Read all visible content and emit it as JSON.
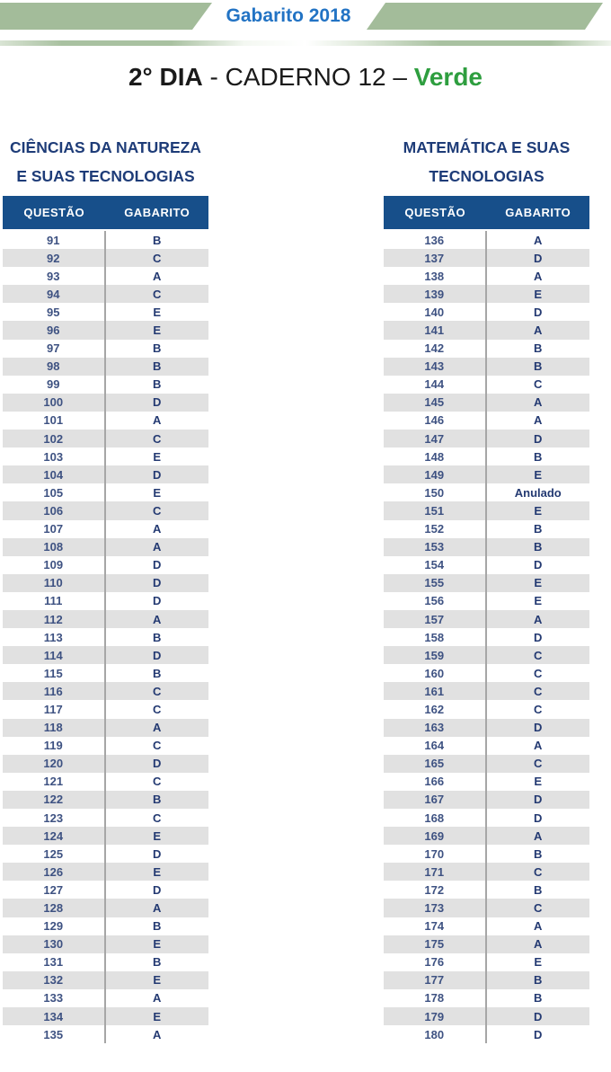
{
  "banner": {
    "title": "Gabarito 2018"
  },
  "page_title": {
    "day": "2° DIA",
    "caderno_part": " - CADERNO 12 – ",
    "color_name": "Verde"
  },
  "colors": {
    "band_green": "#a3bc9a",
    "banner_blue": "#2273c4",
    "verde_green": "#2e9e3f",
    "header_navy": "#174f8a",
    "title_navy": "#1e3c78",
    "question_number_navy": "#3e5282",
    "answer_letter_navy": "#243a72",
    "stripe_gray": "#e1e1e1"
  },
  "tables": [
    {
      "title_lines": [
        "CIÊNCIAS DA NATUREZA",
        "E SUAS TECNOLOGIAS"
      ],
      "columns": [
        "QUESTÃO",
        "GABARITO"
      ],
      "rows": [
        [
          "91",
          "B"
        ],
        [
          "92",
          "C"
        ],
        [
          "93",
          "A"
        ],
        [
          "94",
          "C"
        ],
        [
          "95",
          "E"
        ],
        [
          "96",
          "E"
        ],
        [
          "97",
          "B"
        ],
        [
          "98",
          "B"
        ],
        [
          "99",
          "B"
        ],
        [
          "100",
          "D"
        ],
        [
          "101",
          "A"
        ],
        [
          "102",
          "C"
        ],
        [
          "103",
          "E"
        ],
        [
          "104",
          "D"
        ],
        [
          "105",
          "E"
        ],
        [
          "106",
          "C"
        ],
        [
          "107",
          "A"
        ],
        [
          "108",
          "A"
        ],
        [
          "109",
          "D"
        ],
        [
          "110",
          "D"
        ],
        [
          "111",
          "D"
        ],
        [
          "112",
          "A"
        ],
        [
          "113",
          "B"
        ],
        [
          "114",
          "D"
        ],
        [
          "115",
          "B"
        ],
        [
          "116",
          "C"
        ],
        [
          "117",
          "C"
        ],
        [
          "118",
          "A"
        ],
        [
          "119",
          "C"
        ],
        [
          "120",
          "D"
        ],
        [
          "121",
          "C"
        ],
        [
          "122",
          "B"
        ],
        [
          "123",
          "C"
        ],
        [
          "124",
          "E"
        ],
        [
          "125",
          "D"
        ],
        [
          "126",
          "E"
        ],
        [
          "127",
          "D"
        ],
        [
          "128",
          "A"
        ],
        [
          "129",
          "B"
        ],
        [
          "130",
          "E"
        ],
        [
          "131",
          "B"
        ],
        [
          "132",
          "E"
        ],
        [
          "133",
          "A"
        ],
        [
          "134",
          "E"
        ],
        [
          "135",
          "A"
        ]
      ]
    },
    {
      "title_lines": [
        "MATEMÁTICA E SUAS",
        "TECNOLOGIAS"
      ],
      "columns": [
        "QUESTÃO",
        "GABARITO"
      ],
      "rows": [
        [
          "136",
          "A"
        ],
        [
          "137",
          "D"
        ],
        [
          "138",
          "A"
        ],
        [
          "139",
          "E"
        ],
        [
          "140",
          "D"
        ],
        [
          "141",
          "A"
        ],
        [
          "142",
          "B"
        ],
        [
          "143",
          "B"
        ],
        [
          "144",
          "C"
        ],
        [
          "145",
          "A"
        ],
        [
          "146",
          "A"
        ],
        [
          "147",
          "D"
        ],
        [
          "148",
          "B"
        ],
        [
          "149",
          "E"
        ],
        [
          "150",
          "Anulado"
        ],
        [
          "151",
          "E"
        ],
        [
          "152",
          "B"
        ],
        [
          "153",
          "B"
        ],
        [
          "154",
          "D"
        ],
        [
          "155",
          "E"
        ],
        [
          "156",
          "E"
        ],
        [
          "157",
          "A"
        ],
        [
          "158",
          "D"
        ],
        [
          "159",
          "C"
        ],
        [
          "160",
          "C"
        ],
        [
          "161",
          "C"
        ],
        [
          "162",
          "C"
        ],
        [
          "163",
          "D"
        ],
        [
          "164",
          "A"
        ],
        [
          "165",
          "C"
        ],
        [
          "166",
          "E"
        ],
        [
          "167",
          "D"
        ],
        [
          "168",
          "D"
        ],
        [
          "169",
          "A"
        ],
        [
          "170",
          "B"
        ],
        [
          "171",
          "C"
        ],
        [
          "172",
          "B"
        ],
        [
          "173",
          "C"
        ],
        [
          "174",
          "A"
        ],
        [
          "175",
          "A"
        ],
        [
          "176",
          "E"
        ],
        [
          "177",
          "B"
        ],
        [
          "178",
          "B"
        ],
        [
          "179",
          "D"
        ],
        [
          "180",
          "D"
        ]
      ]
    }
  ]
}
